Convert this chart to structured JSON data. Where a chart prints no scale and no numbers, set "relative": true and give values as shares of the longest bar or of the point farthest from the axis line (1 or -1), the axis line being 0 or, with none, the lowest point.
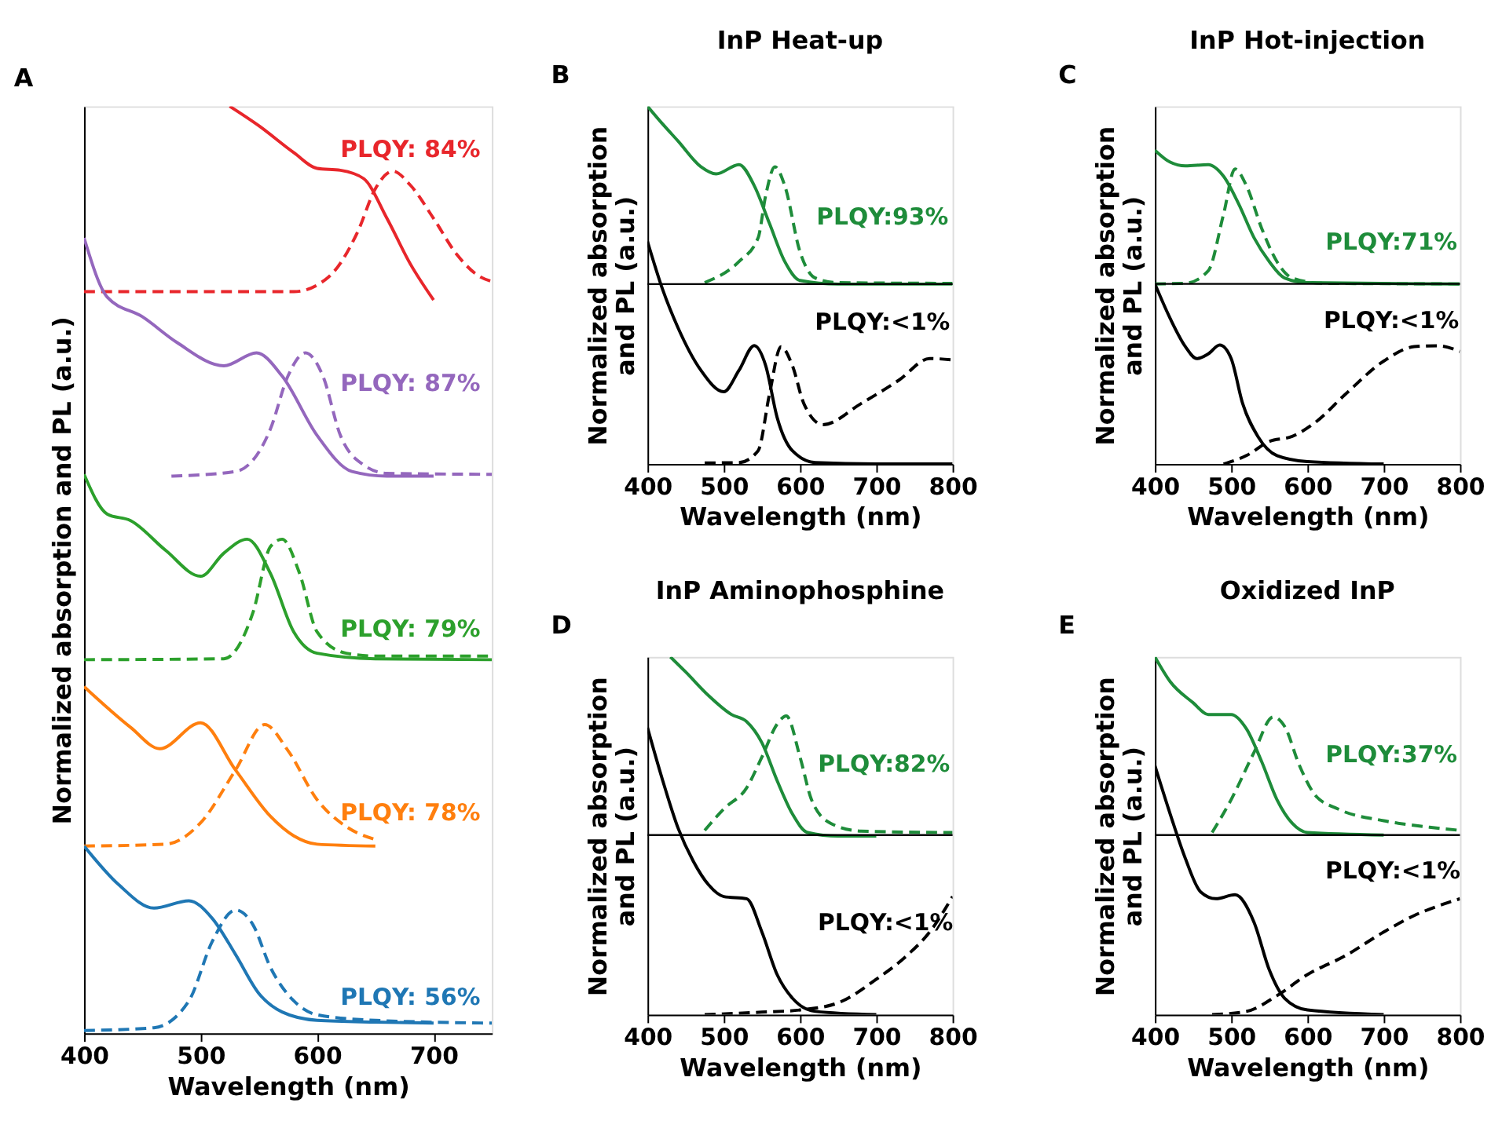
{
  "chart_data": [
    {
      "type": "line",
      "relative": true,
      "xlabel": "Wavelength (nm)",
      "ylabel": "Normalized absorption and PL (a.u.)",
      "xlim": [
        400,
        750
      ],
      "xticks": [
        400,
        500,
        600,
        700
      ],
      "annotations": [
        "A",
        "PLQY: 84%",
        "PLQY: 87%",
        "PLQY: 79%",
        "PLQY: 78%",
        "PLQY: 56%"
      ],
      "series": [
        {
          "color": "#e8262b",
          "line_style": "solid",
          "x": [
            525,
            550,
            580,
            600,
            620,
            640,
            660,
            680,
            700
          ],
          "values": [
            1.0,
            0.979,
            0.95,
            0.933,
            0.931,
            0.922,
            0.879,
            0.83,
            0.791
          ]
        },
        {
          "color": "#e8262b",
          "line_style": "dashed",
          "x": [
            400,
            580,
            610,
            635,
            650,
            665,
            680,
            700,
            720,
            740,
            750
          ],
          "values": [
            0.8,
            0.8,
            0.816,
            0.865,
            0.911,
            0.93,
            0.915,
            0.879,
            0.84,
            0.816,
            0.811
          ]
        },
        {
          "color": "#9467bd",
          "line_style": "solid",
          "x": [
            400,
            420,
            450,
            480,
            520,
            548,
            570,
            600,
            630,
            660,
            700
          ],
          "values": [
            0.858,
            0.794,
            0.773,
            0.745,
            0.72,
            0.734,
            0.709,
            0.645,
            0.606,
            0.601,
            0.601
          ]
        },
        {
          "color": "#9467bd",
          "line_style": "dashed",
          "x": [
            475,
            530,
            560,
            575,
            590,
            605,
            620,
            640,
            660,
            750
          ],
          "values": [
            0.601,
            0.606,
            0.652,
            0.709,
            0.734,
            0.709,
            0.645,
            0.613,
            0.604,
            0.603
          ]
        },
        {
          "color": "#2ca02c",
          "line_style": "solid",
          "x": [
            400,
            420,
            440,
            470,
            500,
            520,
            540,
            560,
            580,
            600,
            650,
            750
          ],
          "values": [
            0.603,
            0.56,
            0.553,
            0.521,
            0.493,
            0.518,
            0.533,
            0.496,
            0.433,
            0.41,
            0.404,
            0.403
          ]
        },
        {
          "color": "#2ca02c",
          "line_style": "dashed",
          "x": [
            400,
            520,
            545,
            560,
            570,
            585,
            600,
            625,
            650,
            750
          ],
          "values": [
            0.403,
            0.404,
            0.454,
            0.525,
            0.533,
            0.496,
            0.433,
            0.41,
            0.407,
            0.407
          ]
        },
        {
          "color": "#ff7f0e",
          "line_style": "solid",
          "x": [
            400,
            440,
            465,
            500,
            530,
            560,
            580,
            600,
            650
          ],
          "values": [
            0.374,
            0.33,
            0.307,
            0.335,
            0.284,
            0.234,
            0.213,
            0.204,
            0.202
          ]
        },
        {
          "color": "#ff7f0e",
          "line_style": "dashed",
          "x": [
            400,
            470,
            500,
            530,
            555,
            575,
            600,
            625,
            650
          ],
          "values": [
            0.202,
            0.204,
            0.227,
            0.284,
            0.333,
            0.305,
            0.252,
            0.223,
            0.209
          ]
        },
        {
          "color": "#1f77b4",
          "line_style": "solid",
          "x": [
            400,
            430,
            460,
            490,
            510,
            530,
            550,
            570,
            600,
            650,
            700
          ],
          "values": [
            0.202,
            0.16,
            0.135,
            0.143,
            0.124,
            0.085,
            0.043,
            0.023,
            0.014,
            0.012,
            0.011
          ]
        },
        {
          "color": "#1f77b4",
          "line_style": "dashed",
          "x": [
            400,
            460,
            490,
            510,
            530,
            545,
            560,
            580,
            600,
            650,
            750
          ],
          "values": [
            0.003,
            0.006,
            0.035,
            0.099,
            0.133,
            0.117,
            0.071,
            0.035,
            0.02,
            0.014,
            0.011
          ]
        }
      ]
    },
    {
      "type": "line",
      "relative": true,
      "title": "InP Heat-up",
      "xlabel": "Wavelength (nm)",
      "ylabel": "Normalized absorption and PL (a.u.)",
      "xlim": [
        400,
        800
      ],
      "xticks": [
        400,
        500,
        600,
        700,
        800
      ],
      "ref_lines": [
        {
          "axis": "y",
          "value": 0.503,
          "color": "#000000"
        }
      ],
      "annotations": [
        "B",
        "PLQY:93%",
        "PLQY:<1%"
      ],
      "series": [
        {
          "color": "#1e8c3a",
          "line_style": "solid",
          "x": [
            400,
            420,
            440,
            470,
            490,
            520,
            540,
            560,
            580,
            600,
            650,
            800
          ],
          "values": [
            1.0,
            0.95,
            0.903,
            0.831,
            0.811,
            0.837,
            0.778,
            0.672,
            0.566,
            0.513,
            0.503,
            0.503
          ]
        },
        {
          "color": "#1e8c3a",
          "line_style": "dashed",
          "x": [
            475,
            520,
            545,
            555,
            567,
            580,
            600,
            620,
            650,
            800
          ],
          "values": [
            0.507,
            0.566,
            0.632,
            0.751,
            0.831,
            0.778,
            0.593,
            0.52,
            0.507,
            0.505
          ]
        },
        {
          "color": "#000000",
          "line_style": "solid",
          "x": [
            400,
            420,
            440,
            470,
            500,
            520,
            540,
            555,
            570,
            590,
            620,
            700,
            800
          ],
          "values": [
            0.622,
            0.487,
            0.381,
            0.262,
            0.202,
            0.262,
            0.331,
            0.275,
            0.13,
            0.037,
            0.004,
            0.0,
            0.0
          ]
        },
        {
          "color": "#000000",
          "line_style": "dashed",
          "x": [
            475,
            520,
            545,
            560,
            575,
            590,
            605,
            630,
            680,
            730,
            770,
            800
          ],
          "values": [
            0.003,
            0.004,
            0.037,
            0.196,
            0.328,
            0.275,
            0.169,
            0.11,
            0.169,
            0.235,
            0.295,
            0.291
          ]
        }
      ]
    },
    {
      "type": "line",
      "relative": true,
      "title": "InP Hot-injection",
      "xlabel": "Wavelength (nm)",
      "ylabel": "Normalized absorption and PL (a.u.)",
      "xlim": [
        400,
        800
      ],
      "xticks": [
        400,
        500,
        600,
        700,
        800
      ],
      "ref_lines": [
        {
          "axis": "y",
          "value": 0.574,
          "color": "#000000"
        }
      ],
      "annotations": [
        "C",
        "PLQY:71%",
        "PLQY:<1%"
      ],
      "series": [
        {
          "color": "#1e8c3a",
          "line_style": "solid",
          "x": [
            400,
            420,
            440,
            470,
            490,
            510,
            530,
            550,
            570,
            600,
            800
          ],
          "values": [
            1.0,
            0.962,
            0.95,
            0.954,
            0.917,
            0.828,
            0.721,
            0.645,
            0.593,
            0.578,
            0.574
          ]
        },
        {
          "color": "#1e8c3a",
          "line_style": "dashed",
          "x": [
            400,
            440,
            470,
            490,
            505,
            520,
            540,
            560,
            580,
            620,
            800
          ],
          "values": [
            0.574,
            0.576,
            0.616,
            0.796,
            0.94,
            0.887,
            0.751,
            0.645,
            0.593,
            0.576,
            0.574
          ]
        },
        {
          "color": "#000000",
          "line_style": "solid",
          "x": [
            400,
            420,
            440,
            455,
            470,
            485,
            500,
            515,
            535,
            560,
            600,
            700
          ],
          "values": [
            0.574,
            0.464,
            0.374,
            0.336,
            0.351,
            0.379,
            0.336,
            0.193,
            0.088,
            0.027,
            0.008,
            0.0
          ]
        },
        {
          "color": "#000000",
          "line_style": "dashed",
          "x": [
            490,
            520,
            550,
            580,
            610,
            650,
            700,
            740,
            770,
            800
          ],
          "values": [
            0.0,
            0.027,
            0.072,
            0.088,
            0.132,
            0.223,
            0.328,
            0.374,
            0.377,
            0.359
          ]
        }
      ]
    },
    {
      "type": "line",
      "relative": true,
      "title": "InP Aminophosphine",
      "xlabel": "Wavelength (nm)",
      "ylabel": "Normalized absorption and PL (a.u.)",
      "xlim": [
        400,
        800
      ],
      "xticks": [
        400,
        500,
        600,
        700,
        800
      ],
      "ref_lines": [
        {
          "axis": "y",
          "value": 0.502,
          "color": "#000000"
        }
      ],
      "annotations": [
        "D",
        "PLQY:82%",
        "PLQY:<1%"
      ],
      "series": [
        {
          "color": "#1e8c3a",
          "line_style": "solid",
          "x": [
            430,
            450,
            480,
            510,
            530,
            550,
            570,
            590,
            610,
            650,
            700
          ],
          "values": [
            1.0,
            0.958,
            0.892,
            0.839,
            0.819,
            0.76,
            0.654,
            0.561,
            0.509,
            0.499,
            0.499
          ]
        },
        {
          "color": "#1e8c3a",
          "line_style": "dashed",
          "x": [
            475,
            500,
            530,
            550,
            570,
            582,
            600,
            615,
            640,
            680,
            800
          ],
          "values": [
            0.515,
            0.575,
            0.634,
            0.72,
            0.812,
            0.835,
            0.72,
            0.601,
            0.535,
            0.513,
            0.509
          ]
        },
        {
          "color": "#000000",
          "line_style": "solid",
          "x": [
            400,
            420,
            440,
            460,
            480,
            500,
            530,
            550,
            570,
            590,
            620,
            700
          ],
          "values": [
            0.802,
            0.654,
            0.522,
            0.429,
            0.363,
            0.33,
            0.324,
            0.231,
            0.112,
            0.046,
            0.009,
            0.0
          ]
        },
        {
          "color": "#000000",
          "line_style": "dashed",
          "x": [
            475,
            550,
            600,
            650,
            700,
            740,
            770,
            800
          ],
          "values": [
            0.0,
            0.007,
            0.013,
            0.033,
            0.099,
            0.165,
            0.231,
            0.33
          ]
        }
      ]
    },
    {
      "type": "line",
      "relative": true,
      "title": "Oxidized InP",
      "xlabel": "Wavelength (nm)",
      "ylabel": "Normalized absorption and PL (a.u.)",
      "xlim": [
        400,
        800
      ],
      "xticks": [
        400,
        500,
        600,
        700,
        800
      ],
      "ref_lines": [
        {
          "axis": "y",
          "value": 0.502,
          "color": "#000000"
        }
      ],
      "annotations": [
        "E",
        "PLQY:37%",
        "PLQY:<1%"
      ],
      "series": [
        {
          "color": "#1e8c3a",
          "line_style": "solid",
          "x": [
            400,
            420,
            450,
            470,
            500,
            520,
            540,
            560,
            580,
            600,
            700
          ],
          "values": [
            1.0,
            0.931,
            0.872,
            0.839,
            0.839,
            0.799,
            0.707,
            0.601,
            0.535,
            0.509,
            0.502
          ]
        },
        {
          "color": "#1e8c3a",
          "line_style": "dashed",
          "x": [
            475,
            500,
            530,
            555,
            570,
            590,
            610,
            640,
            700,
            760,
            800
          ],
          "values": [
            0.509,
            0.601,
            0.733,
            0.832,
            0.806,
            0.694,
            0.614,
            0.575,
            0.542,
            0.524,
            0.515
          ]
        },
        {
          "color": "#000000",
          "line_style": "solid",
          "x": [
            400,
            420,
            440,
            460,
            480,
            505,
            530,
            550,
            570,
            600,
            700
          ],
          "values": [
            0.696,
            0.561,
            0.436,
            0.343,
            0.324,
            0.335,
            0.258,
            0.125,
            0.046,
            0.013,
            0.0
          ]
        },
        {
          "color": "#000000",
          "line_style": "dashed",
          "x": [
            475,
            520,
            560,
            600,
            650,
            700,
            740,
            780,
            800
          ],
          "values": [
            0.0,
            0.009,
            0.053,
            0.112,
            0.165,
            0.231,
            0.277,
            0.31,
            0.324
          ]
        }
      ]
    }
  ]
}
